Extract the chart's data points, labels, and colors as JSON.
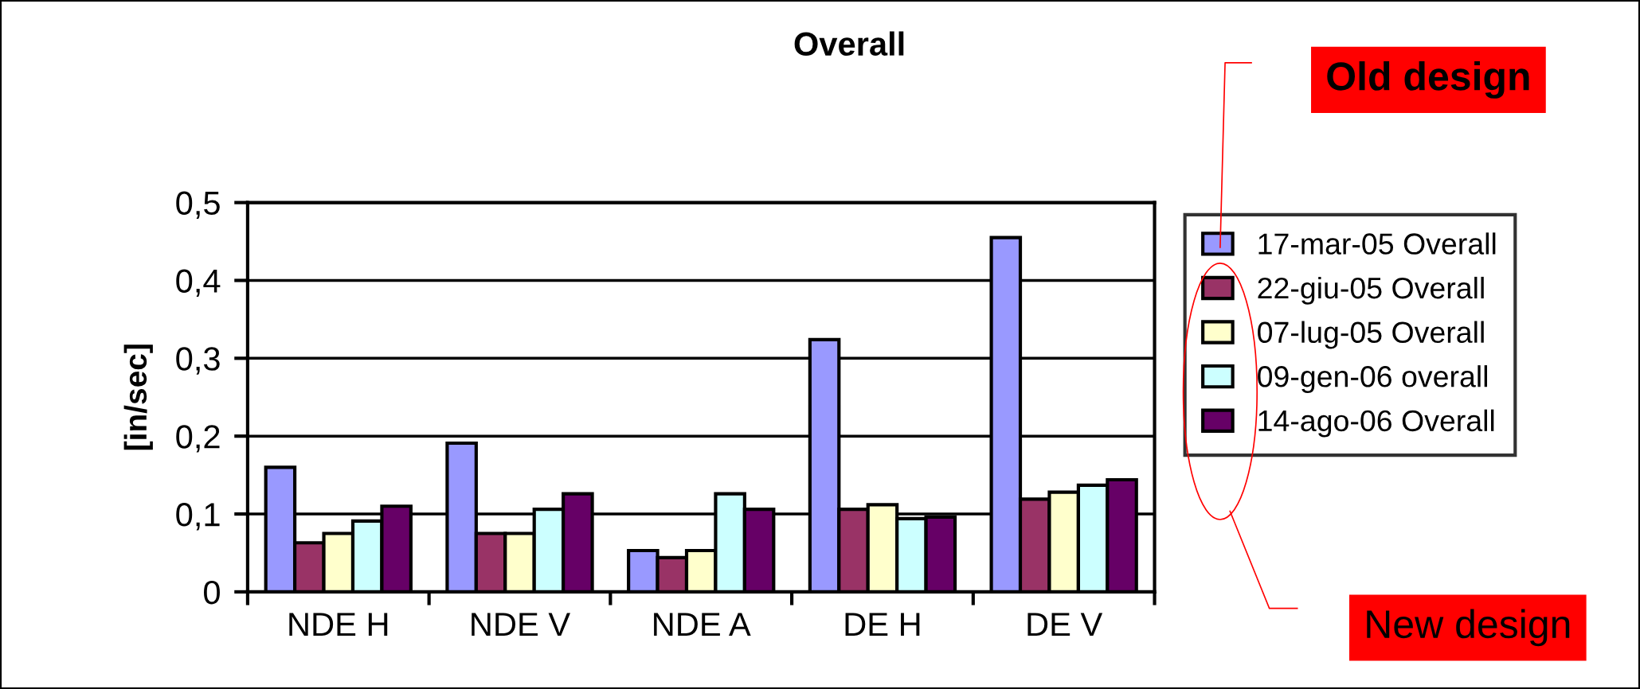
{
  "chart_data": {
    "type": "bar",
    "title": "Overall",
    "ylabel": "[in/sec]",
    "categories": [
      "NDE H",
      "NDE V",
      "NDE A",
      "DE H",
      "DE V"
    ],
    "series": [
      {
        "name": "17-mar-05 Overall",
        "color": "#9999ff",
        "values": [
          0.16,
          0.191,
          0.053,
          0.324,
          0.455
        ]
      },
      {
        "name": "22-giu-05 Overall",
        "color": "#993366",
        "values": [
          0.063,
          0.075,
          0.044,
          0.106,
          0.119
        ]
      },
      {
        "name": "07-lug-05 Overall",
        "color": "#ffffcc",
        "values": [
          0.075,
          0.075,
          0.053,
          0.112,
          0.128
        ]
      },
      {
        "name": "09-gen-06 overall",
        "color": "#ccffff",
        "values": [
          0.091,
          0.106,
          0.126,
          0.094,
          0.137
        ]
      },
      {
        "name": "14-ago-06 Overall",
        "color": "#660066",
        "values": [
          0.11,
          0.126,
          0.106,
          0.096,
          0.144
        ]
      }
    ],
    "ylim": [
      0,
      0.5
    ],
    "yticks": [
      0,
      {
        "value": 0.1,
        "label": "0,1"
      },
      {
        "value": 0.2,
        "label": "0,2"
      },
      {
        "value": 0.3,
        "label": "0,3"
      },
      {
        "value": 0.4,
        "label": "0,4"
      },
      {
        "value": 0.5,
        "label": "0,5"
      }
    ],
    "grid": "y",
    "legend": "right",
    "annotations": [
      "Old design",
      "New design"
    ]
  }
}
